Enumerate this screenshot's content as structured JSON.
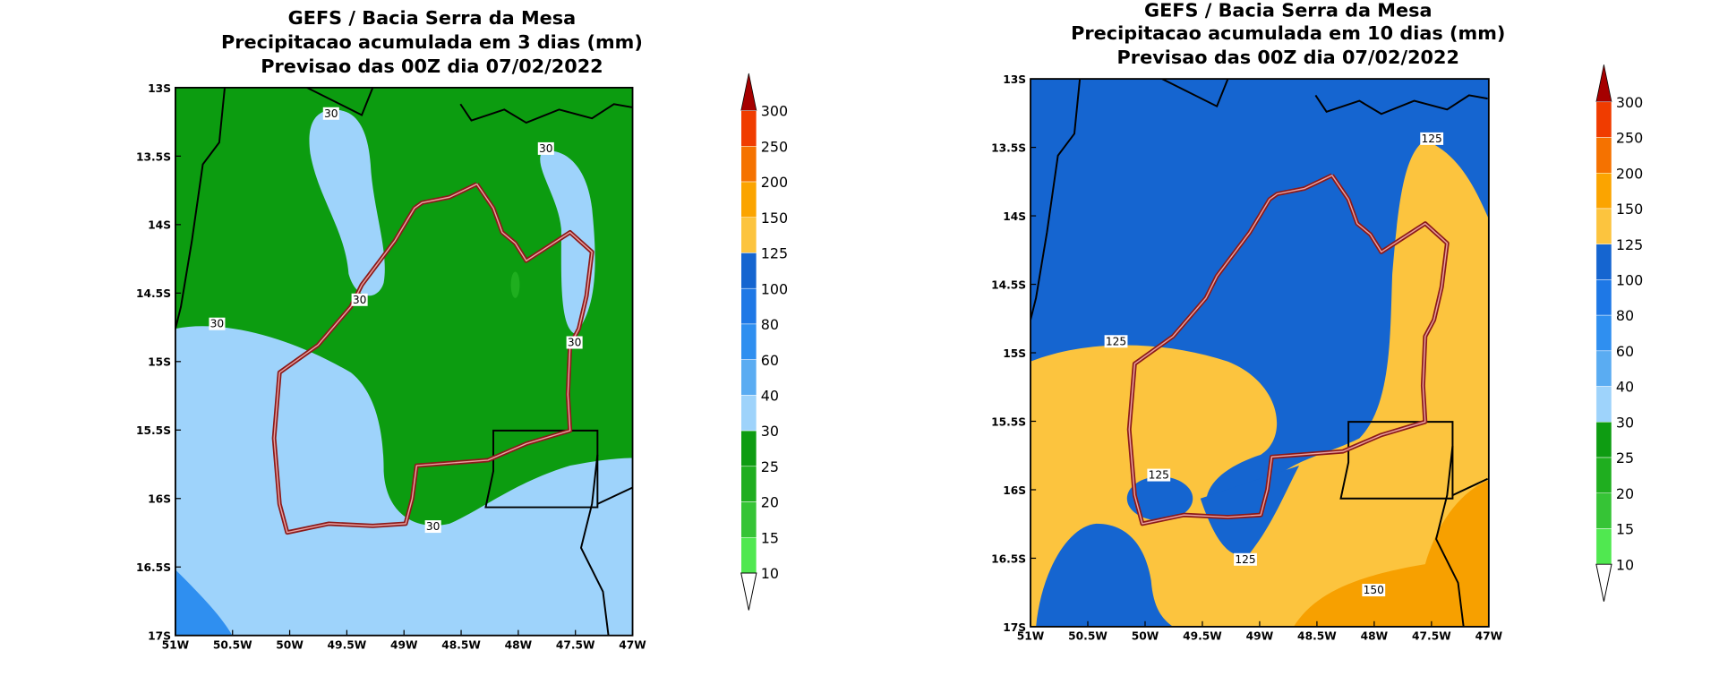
{
  "panels": [
    {
      "title": [
        "GEFS / Bacia Serra da Mesa",
        "Precipitacao acumulada em 3 dias (mm)",
        "Previsao das 00Z dia 07/02/2022"
      ],
      "lat_labels": [
        "13S",
        "13.5S",
        "14S",
        "14.5S",
        "15S",
        "15.5S",
        "16S",
        "16.5S",
        "17S"
      ],
      "lon_labels": [
        "51W",
        "50.5W",
        "50W",
        "49.5W",
        "49W",
        "48.5W",
        "48W",
        "47.5W",
        "47W"
      ],
      "contour_labels": [
        "30",
        "30",
        "30",
        "30",
        "30",
        "30"
      ],
      "colorbar_labels": [
        "300",
        "250",
        "200",
        "150",
        "125",
        "100",
        "80",
        "60",
        "40",
        "30",
        "25",
        "20",
        "15",
        "10"
      ]
    },
    {
      "title": [
        "GEFS / Bacia Serra da Mesa",
        "Precipitacao acumulada em 10 dias (mm)",
        "Previsao das 00Z dia 07/02/2022"
      ],
      "lat_labels": [
        "13S",
        "13.5S",
        "14S",
        "14.5S",
        "15S",
        "15.5S",
        "16S",
        "16.5S",
        "17S"
      ],
      "lon_labels": [
        "51W",
        "50.5W",
        "50W",
        "49.5W",
        "49W",
        "48.5W",
        "48W",
        "47.5W",
        "47W"
      ],
      "contour_labels": [
        "125",
        "125",
        "125",
        "125",
        "150"
      ],
      "colorbar_labels": [
        "300",
        "250",
        "200",
        "150",
        "125",
        "100",
        "80",
        "60",
        "40",
        "30",
        "25",
        "20",
        "15",
        "10"
      ]
    }
  ]
}
